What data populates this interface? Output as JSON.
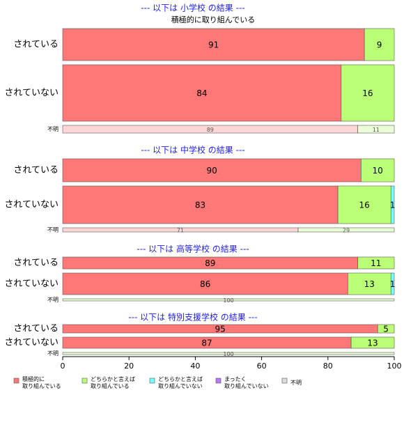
{
  "chart_data": [
    {
      "type": "mosaic",
      "title": "--- 以下は 小学校 の結果 ---",
      "header": "積極的に取り組んでいる",
      "categories": [
        "されている",
        "されていない",
        "不明"
      ],
      "row_sizes": [
        46,
        81,
        11
      ],
      "series": [
        {
          "name": "積極的に\n取り組んでいる",
          "color": "#ff7777",
          "values": [
            91,
            84,
            89
          ]
        },
        {
          "name": "どちらかと言えば\n取り組んでいる",
          "color": "#bbff77",
          "values": [
            9,
            16,
            11
          ]
        },
        {
          "name": "どちらかと言えば\n取り組んでいない",
          "color": "#77ffff",
          "values": [
            0,
            0,
            0
          ]
        },
        {
          "name": "まったく\n取り組んでいない",
          "color": "#bb77ff",
          "values": [
            0,
            0,
            0
          ]
        },
        {
          "name": "不明",
          "color": "#dddddd",
          "values": [
            0,
            0,
            0
          ]
        }
      ]
    },
    {
      "type": "mosaic",
      "title": "--- 以下は 中学校 の結果 ---",
      "categories": [
        "されている",
        "されていない",
        "不明"
      ],
      "row_sizes": [
        33,
        54,
        6
      ],
      "series": [
        {
          "color": "#ff7777",
          "values": [
            90,
            83,
            71
          ]
        },
        {
          "color": "#bbff77",
          "values": [
            10,
            16,
            29
          ]
        },
        {
          "color": "#77ffff",
          "values": [
            0,
            1,
            0
          ]
        },
        {
          "color": "#bb77ff",
          "values": [
            0,
            0,
            0
          ]
        },
        {
          "color": "#dddddd",
          "values": [
            0,
            0,
            0
          ]
        }
      ]
    },
    {
      "type": "mosaic",
      "title": "--- 以下は 高等学校 の結果 ---",
      "categories": [
        "されている",
        "されていない",
        "不明"
      ],
      "row_sizes": [
        17,
        31,
        3
      ],
      "series": [
        {
          "color": "#ff7777",
          "values": [
            89,
            86,
            0
          ]
        },
        {
          "color": "#bbff77",
          "values": [
            11,
            13,
            100
          ]
        },
        {
          "color": "#77ffff",
          "values": [
            0,
            1,
            0
          ]
        },
        {
          "color": "#bb77ff",
          "values": [
            0,
            0,
            0
          ]
        },
        {
          "color": "#dddddd",
          "values": [
            0,
            0,
            0
          ]
        }
      ]
    },
    {
      "type": "mosaic",
      "title": "--- 以下は 特別支援学校 の結果 ---",
      "categories": [
        "されている",
        "されていない",
        "不明"
      ],
      "row_sizes": [
        12,
        16,
        3
      ],
      "series": [
        {
          "color": "#ff7777",
          "values": [
            95,
            87,
            0
          ]
        },
        {
          "color": "#bbff77",
          "values": [
            5,
            13,
            100
          ]
        },
        {
          "color": "#77ffff",
          "values": [
            0,
            0,
            0
          ]
        },
        {
          "color": "#bb77ff",
          "values": [
            0,
            0,
            0
          ]
        },
        {
          "color": "#dddddd",
          "values": [
            0,
            0,
            0
          ]
        }
      ],
      "xlim": [
        0,
        100
      ],
      "xticks": [
        0,
        20,
        40,
        60,
        80,
        100
      ]
    }
  ]
}
